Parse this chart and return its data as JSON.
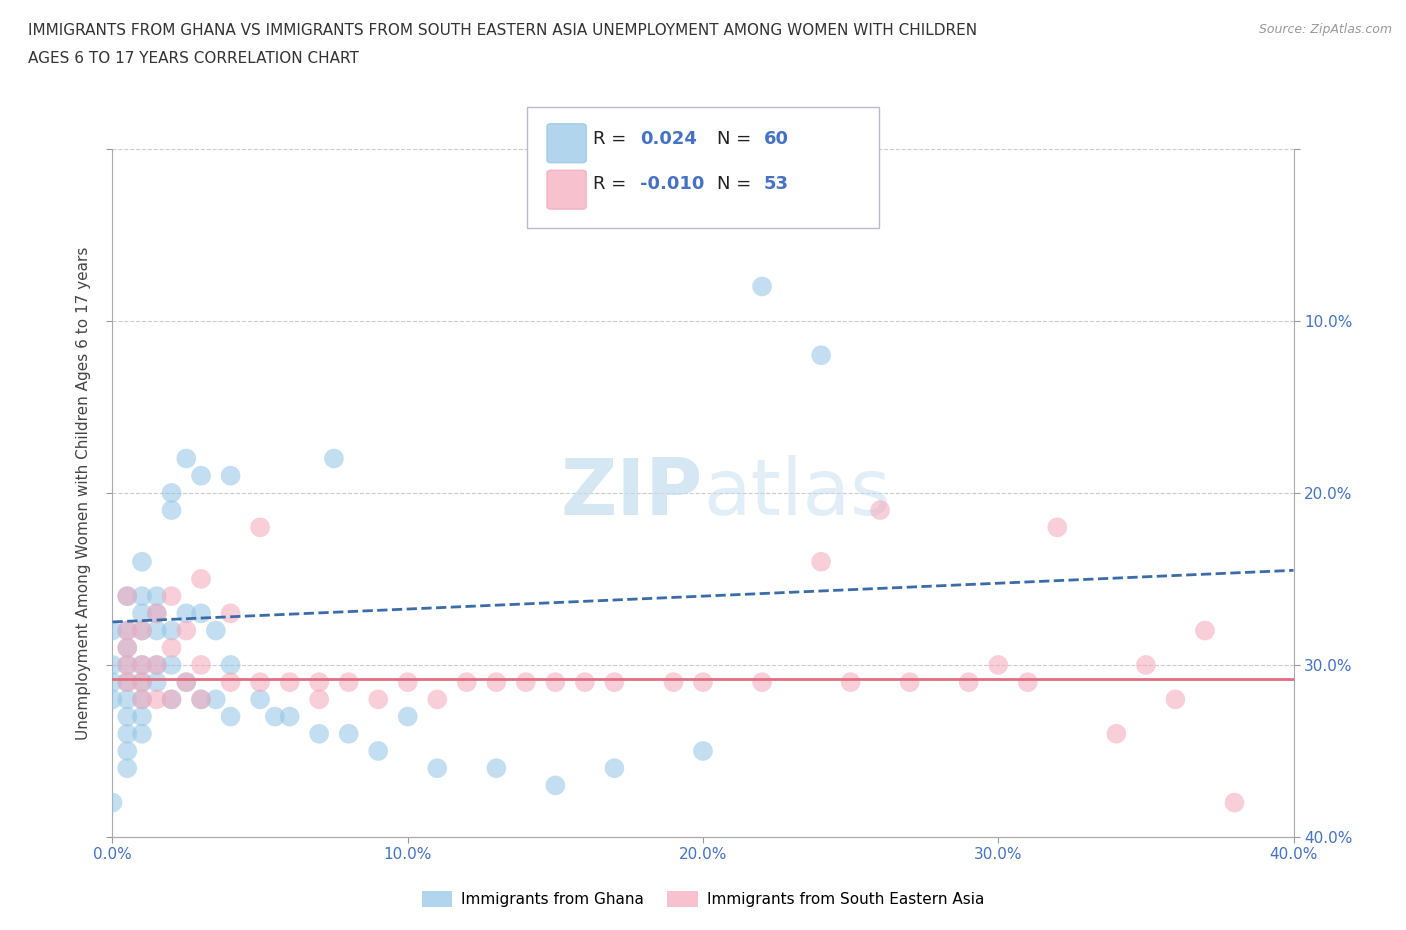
{
  "title_line1": "IMMIGRANTS FROM GHANA VS IMMIGRANTS FROM SOUTH EASTERN ASIA UNEMPLOYMENT AMONG WOMEN WITH CHILDREN",
  "title_line2": "AGES 6 TO 17 YEARS CORRELATION CHART",
  "source": "Source: ZipAtlas.com",
  "ylabel": "Unemployment Among Women with Children Ages 6 to 17 years",
  "xlim": [
    0.0,
    0.4
  ],
  "ylim": [
    0.0,
    0.4
  ],
  "xticks": [
    0.0,
    0.1,
    0.2,
    0.3,
    0.4
  ],
  "yticks": [
    0.0,
    0.1,
    0.2,
    0.3,
    0.4
  ],
  "xticklabels": [
    "0.0%",
    "10.0%",
    "20.0%",
    "30.0%",
    "40.0%"
  ],
  "yticklabels_right": [
    "40.0%",
    "30.0%",
    "20.0%",
    "10.0%",
    ""
  ],
  "ghana_color": "#90c4e4",
  "sea_color": "#f4a7b9",
  "ghana_R": 0.024,
  "ghana_N": 60,
  "sea_R": -0.01,
  "sea_N": 53,
  "ghana_line_color": "#3a6caa",
  "sea_line_color": "#e07080",
  "watermark_color": "#d0e4f0",
  "legend_label_ghana": "Immigrants from Ghana",
  "legend_label_sea": "Immigrants from South Eastern Asia",
  "ghana_x": [
    0.005,
    0.005,
    0.005,
    0.005,
    0.005,
    0.005,
    0.005,
    0.005,
    0.005,
    0.005,
    0.01,
    0.01,
    0.01,
    0.01,
    0.01,
    0.01,
    0.01,
    0.01,
    0.01,
    0.015,
    0.015,
    0.015,
    0.015,
    0.015,
    0.02,
    0.02,
    0.02,
    0.02,
    0.02,
    0.025,
    0.025,
    0.025,
    0.03,
    0.03,
    0.03,
    0.035,
    0.035,
    0.04,
    0.04,
    0.04,
    0.05,
    0.055,
    0.06,
    0.07,
    0.075,
    0.08,
    0.09,
    0.1,
    0.11,
    0.13,
    0.15,
    0.17,
    0.2,
    0.22,
    0.24,
    0.0,
    0.0,
    0.0,
    0.0,
    0.0
  ],
  "ghana_y": [
    0.14,
    0.12,
    0.11,
    0.1,
    0.09,
    0.08,
    0.07,
    0.06,
    0.05,
    0.04,
    0.16,
    0.14,
    0.13,
    0.12,
    0.1,
    0.09,
    0.08,
    0.07,
    0.06,
    0.14,
    0.13,
    0.12,
    0.1,
    0.09,
    0.2,
    0.19,
    0.12,
    0.1,
    0.08,
    0.22,
    0.13,
    0.09,
    0.21,
    0.13,
    0.08,
    0.12,
    0.08,
    0.21,
    0.1,
    0.07,
    0.08,
    0.07,
    0.07,
    0.06,
    0.22,
    0.06,
    0.05,
    0.07,
    0.04,
    0.04,
    0.03,
    0.04,
    0.05,
    0.32,
    0.28,
    0.12,
    0.1,
    0.09,
    0.08,
    0.02
  ],
  "sea_x": [
    0.005,
    0.005,
    0.005,
    0.005,
    0.005,
    0.01,
    0.01,
    0.01,
    0.01,
    0.015,
    0.015,
    0.015,
    0.02,
    0.02,
    0.02,
    0.025,
    0.025,
    0.03,
    0.03,
    0.03,
    0.04,
    0.04,
    0.05,
    0.05,
    0.06,
    0.07,
    0.07,
    0.08,
    0.09,
    0.1,
    0.11,
    0.12,
    0.13,
    0.14,
    0.15,
    0.16,
    0.17,
    0.19,
    0.2,
    0.22,
    0.24,
    0.25,
    0.26,
    0.27,
    0.29,
    0.3,
    0.31,
    0.32,
    0.34,
    0.35,
    0.36,
    0.37,
    0.38
  ],
  "sea_y": [
    0.14,
    0.12,
    0.11,
    0.1,
    0.09,
    0.12,
    0.1,
    0.09,
    0.08,
    0.13,
    0.1,
    0.08,
    0.14,
    0.11,
    0.08,
    0.12,
    0.09,
    0.15,
    0.1,
    0.08,
    0.13,
    0.09,
    0.18,
    0.09,
    0.09,
    0.09,
    0.08,
    0.09,
    0.08,
    0.09,
    0.08,
    0.09,
    0.09,
    0.09,
    0.09,
    0.09,
    0.09,
    0.09,
    0.09,
    0.09,
    0.16,
    0.09,
    0.19,
    0.09,
    0.09,
    0.1,
    0.09,
    0.18,
    0.06,
    0.1,
    0.08,
    0.12,
    0.02
  ],
  "ghana_trend_start": 0.125,
  "ghana_trend_end": 0.155,
  "sea_trend_y": 0.092
}
